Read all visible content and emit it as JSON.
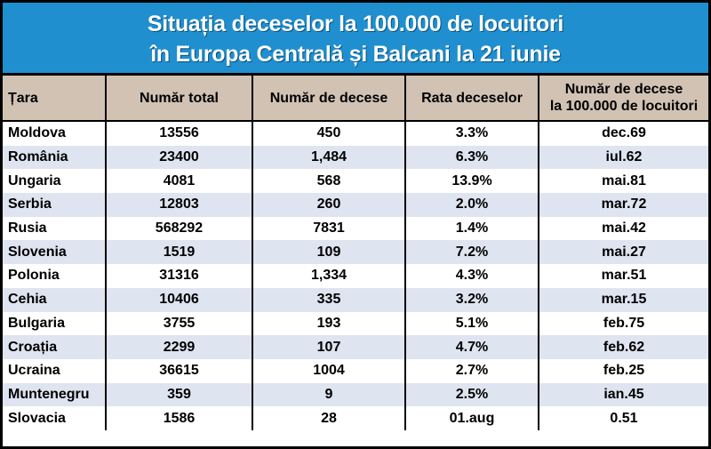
{
  "title": {
    "line1": "Situația deceselor la 100.000 de locuitori",
    "line2": "în Europa Centrală și Balcani la 21 iunie"
  },
  "chart_data": {
    "type": "table",
    "title": "Situația deceselor la 100.000 de locuitori în Europa Centrală și Balcani la 21 iunie",
    "headers": [
      "Țara",
      "Număr total",
      "Număr de decese",
      "Rata deceselor",
      "Număr de decese",
      "la 100.000 de locuitori"
    ],
    "rows": [
      [
        "Moldova",
        "13556",
        "450",
        "3.3%",
        "dec.69"
      ],
      [
        "România",
        "23400",
        "1,484",
        "6.3%",
        "iul.62"
      ],
      [
        "Ungaria",
        "4081",
        "568",
        "13.9%",
        "mai.81"
      ],
      [
        "Serbia",
        "12803",
        "260",
        "2.0%",
        "mar.72"
      ],
      [
        "Rusia",
        "568292",
        "7831",
        "1.4%",
        "mai.42"
      ],
      [
        "Slovenia",
        "1519",
        "109",
        "7.2%",
        "mai.27"
      ],
      [
        "Polonia",
        "31316",
        "1,334",
        "4.3%",
        "mar.51"
      ],
      [
        "Cehia",
        "10406",
        "335",
        "3.2%",
        "mar.15"
      ],
      [
        "Bulgaria",
        "3755",
        "193",
        "5.1%",
        "feb.75"
      ],
      [
        "Croația",
        "2299",
        "107",
        "4.7%",
        "feb.62"
      ],
      [
        "Ucraina",
        "36615",
        "1004",
        "2.7%",
        "feb.25"
      ],
      [
        "Muntenegru",
        "359",
        "9",
        "2.5%",
        "ian.45"
      ],
      [
        "Slovacia",
        "1586",
        "28",
        "01.aug",
        "0.51"
      ]
    ]
  }
}
